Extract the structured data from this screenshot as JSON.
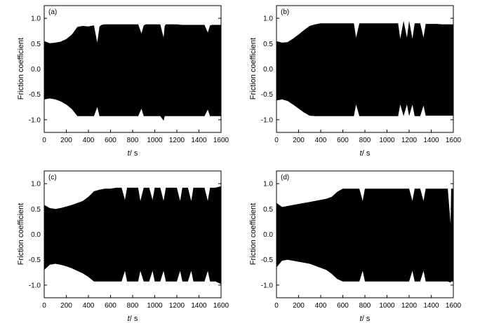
{
  "chart_data": [
    {
      "type": "area",
      "panel_label": "(a)",
      "xlabel_var": "t",
      "xlabel_unit": "/ s",
      "ylabel": "Friction coefficient",
      "xlim": [
        0,
        1600
      ],
      "ylim": [
        -1.25,
        1.25
      ],
      "xticks": [
        0,
        200,
        400,
        600,
        800,
        1000,
        1200,
        1400,
        1600
      ],
      "yticks": [
        -1.0,
        -0.5,
        0.0,
        0.5,
        1.0
      ],
      "ytick_labels": [
        "-1.0",
        "-0.5",
        "0.0",
        "0.5",
        "1.0"
      ],
      "series": [
        {
          "x": [
            0,
            50,
            100,
            150,
            200,
            250,
            300,
            350,
            400,
            450,
            480,
            500,
            520,
            550,
            600,
            650,
            700,
            750,
            800,
            850,
            880,
            900,
            920,
            950,
            1000,
            1050,
            1080,
            1090,
            1100,
            1150,
            1200,
            1250,
            1300,
            1350,
            1400,
            1450,
            1480,
            1500,
            1520,
            1550,
            1600
          ],
          "upper": [
            0.55,
            0.51,
            0.52,
            0.54,
            0.59,
            0.68,
            0.83,
            0.85,
            0.84,
            0.86,
            0.52,
            0.84,
            0.87,
            0.88,
            0.88,
            0.88,
            0.88,
            0.88,
            0.88,
            0.88,
            0.7,
            0.86,
            0.88,
            0.88,
            0.88,
            0.88,
            0.62,
            0.85,
            0.88,
            0.88,
            0.88,
            0.87,
            0.87,
            0.87,
            0.87,
            0.87,
            0.72,
            0.86,
            0.87,
            0.87,
            0.87
          ],
          "lower": [
            -0.6,
            -0.58,
            -0.6,
            -0.64,
            -0.7,
            -0.79,
            -0.93,
            -0.93,
            -0.93,
            -0.93,
            -0.75,
            -0.93,
            -0.93,
            -0.93,
            -0.93,
            -0.93,
            -0.93,
            -0.93,
            -0.93,
            -0.93,
            -0.78,
            -0.93,
            -0.93,
            -0.93,
            -0.93,
            -0.93,
            -1.02,
            -0.93,
            -0.93,
            -0.93,
            -0.93,
            -0.93,
            -0.93,
            -0.93,
            -0.93,
            -0.93,
            -0.8,
            -0.93,
            -0.93,
            -0.93,
            -0.93
          ]
        }
      ]
    },
    {
      "type": "area",
      "panel_label": "(b)",
      "xlabel_var": "t",
      "xlabel_unit": "/ s",
      "ylabel": "Friction coefficient",
      "xlim": [
        0,
        1600
      ],
      "ylim": [
        -1.25,
        1.25
      ],
      "xticks": [
        0,
        200,
        400,
        600,
        800,
        1000,
        1200,
        1400,
        1600
      ],
      "yticks": [
        -1.0,
        -0.5,
        0.0,
        0.5,
        1.0
      ],
      "ytick_labels": [
        "-1.0",
        "-0.5",
        "0.0",
        "0.5",
        "1.0"
      ],
      "series": [
        {
          "x": [
            0,
            50,
            100,
            150,
            200,
            250,
            300,
            350,
            400,
            450,
            500,
            550,
            600,
            650,
            700,
            720,
            750,
            800,
            850,
            900,
            950,
            1000,
            1050,
            1100,
            1120,
            1150,
            1180,
            1200,
            1230,
            1250,
            1300,
            1330,
            1350,
            1400,
            1450,
            1500,
            1550,
            1600
          ],
          "upper": [
            0.55,
            0.52,
            0.53,
            0.6,
            0.68,
            0.77,
            0.85,
            0.88,
            0.9,
            0.9,
            0.9,
            0.9,
            0.9,
            0.9,
            0.9,
            0.62,
            0.9,
            0.9,
            0.9,
            0.9,
            0.9,
            0.9,
            0.9,
            0.9,
            0.6,
            0.95,
            0.62,
            0.95,
            0.6,
            0.9,
            0.9,
            0.62,
            0.89,
            0.89,
            0.89,
            0.88,
            0.88,
            0.88
          ],
          "lower": [
            -0.62,
            -0.6,
            -0.63,
            -0.7,
            -0.78,
            -0.86,
            -0.92,
            -0.93,
            -0.93,
            -0.93,
            -0.93,
            -0.93,
            -0.93,
            -0.93,
            -0.93,
            -0.7,
            -0.93,
            -0.93,
            -0.93,
            -0.93,
            -0.93,
            -0.93,
            -0.93,
            -0.93,
            -0.7,
            -0.93,
            -0.7,
            -0.93,
            -0.7,
            -0.93,
            -0.93,
            -0.72,
            -0.92,
            -0.92,
            -0.92,
            -0.92,
            -0.92,
            -0.92
          ]
        }
      ]
    },
    {
      "type": "area",
      "panel_label": "(c)",
      "xlabel_var": "t",
      "xlabel_unit": "/ s",
      "ylabel": "Friction coefficient",
      "xlim": [
        0,
        1600
      ],
      "ylim": [
        -1.25,
        1.25
      ],
      "xticks": [
        0,
        200,
        400,
        600,
        800,
        1000,
        1200,
        1400,
        1600
      ],
      "yticks": [
        -1.0,
        -0.5,
        0.0,
        0.5,
        1.0
      ],
      "ytick_labels": [
        "-1.0",
        "-0.5",
        "0.0",
        "0.5",
        "1.0"
      ],
      "series": [
        {
          "x": [
            0,
            50,
            100,
            150,
            200,
            250,
            300,
            350,
            400,
            450,
            500,
            550,
            600,
            650,
            700,
            730,
            750,
            800,
            850,
            870,
            900,
            950,
            980,
            1000,
            1050,
            1080,
            1100,
            1150,
            1200,
            1230,
            1250,
            1300,
            1330,
            1350,
            1400,
            1450,
            1480,
            1500,
            1550,
            1600
          ],
          "upper": [
            0.58,
            0.52,
            0.5,
            0.52,
            0.55,
            0.58,
            0.62,
            0.66,
            0.74,
            0.85,
            0.88,
            0.9,
            0.9,
            0.92,
            0.92,
            0.68,
            0.92,
            0.92,
            0.92,
            0.66,
            0.92,
            0.92,
            0.68,
            0.92,
            0.92,
            0.66,
            0.92,
            0.92,
            0.92,
            0.66,
            0.92,
            0.92,
            0.66,
            0.92,
            0.92,
            0.92,
            0.66,
            0.92,
            0.92,
            0.95
          ],
          "lower": [
            -0.7,
            -0.6,
            -0.58,
            -0.6,
            -0.63,
            -0.67,
            -0.72,
            -0.77,
            -0.84,
            -0.93,
            -0.93,
            -0.93,
            -0.93,
            -0.93,
            -0.93,
            -0.72,
            -0.93,
            -0.93,
            -0.93,
            -0.72,
            -0.93,
            -0.93,
            -0.72,
            -0.93,
            -0.93,
            -0.72,
            -0.93,
            -0.93,
            -0.93,
            -0.72,
            -0.93,
            -0.93,
            -0.72,
            -0.93,
            -0.93,
            -0.93,
            -0.72,
            -0.93,
            -0.93,
            -0.98
          ]
        }
      ]
    },
    {
      "type": "area",
      "panel_label": "(d)",
      "xlabel_var": "t",
      "xlabel_unit": "/ s",
      "ylabel": "Friction coefficient",
      "xlim": [
        0,
        1600
      ],
      "ylim": [
        -1.25,
        1.25
      ],
      "xticks": [
        0,
        200,
        400,
        600,
        800,
        1000,
        1200,
        1400,
        1600
      ],
      "yticks": [
        -1.0,
        -0.5,
        0.0,
        0.5,
        1.0
      ],
      "ytick_labels": [
        "-1.0",
        "-0.5",
        "0.0",
        "0.5",
        "1.0"
      ],
      "series": [
        {
          "x": [
            0,
            50,
            100,
            150,
            200,
            250,
            300,
            350,
            400,
            450,
            500,
            550,
            600,
            650,
            700,
            750,
            780,
            800,
            850,
            900,
            950,
            1000,
            1050,
            1100,
            1150,
            1200,
            1230,
            1250,
            1300,
            1330,
            1350,
            1400,
            1450,
            1500,
            1550,
            1575,
            1580,
            1600
          ],
          "upper": [
            0.62,
            0.54,
            0.56,
            0.58,
            0.6,
            0.62,
            0.64,
            0.66,
            0.68,
            0.7,
            0.74,
            0.84,
            0.9,
            0.9,
            0.9,
            0.9,
            0.66,
            0.9,
            0.9,
            0.9,
            0.9,
            0.9,
            0.9,
            0.9,
            0.9,
            0.9,
            0.66,
            0.9,
            0.9,
            0.66,
            0.9,
            0.9,
            0.9,
            0.9,
            0.9,
            0.2,
            0.9,
            0.9
          ],
          "lower": [
            -0.65,
            -0.52,
            -0.5,
            -0.52,
            -0.54,
            -0.56,
            -0.58,
            -0.62,
            -0.66,
            -0.7,
            -0.78,
            -0.88,
            -0.93,
            -0.93,
            -0.93,
            -0.93,
            -0.72,
            -0.93,
            -0.93,
            -0.93,
            -0.93,
            -0.93,
            -0.93,
            -0.93,
            -0.93,
            -0.93,
            -0.72,
            -0.93,
            -0.93,
            -0.72,
            -0.93,
            -0.93,
            -0.93,
            -0.93,
            -0.93,
            -0.95,
            -0.93,
            -0.93
          ]
        }
      ]
    }
  ]
}
